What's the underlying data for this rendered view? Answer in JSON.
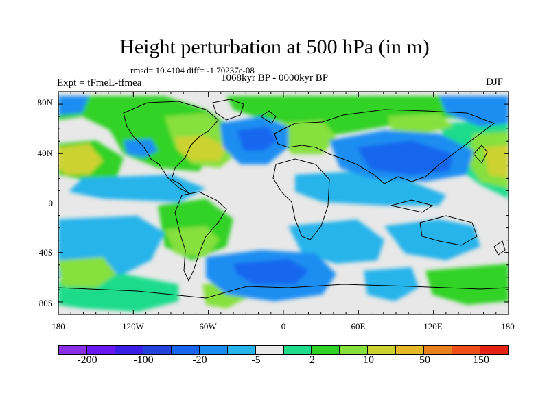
{
  "figure": {
    "title": "Height perturbation at 500 hPa (in m)",
    "stats": "rmsd= 10.4104 diff= -1.70237e-08",
    "period": "1068kyr BP - 0000kyr BP",
    "experiment": "Expt = tFmeL-tfmea",
    "season": "DJF"
  },
  "axes": {
    "lat_ticks": [
      "80N",
      "40N",
      "0",
      "40S",
      "80S"
    ],
    "lon_ticks": [
      "180",
      "120W",
      "60W",
      "0",
      "60E",
      "120E",
      "180"
    ]
  },
  "colorbar": {
    "colors": [
      "#8b2fe6",
      "#6a18f0",
      "#3b1fe6",
      "#2244dd",
      "#1966ee",
      "#1c8ef2",
      "#27b4ea",
      "#e8e8e8",
      "#1edc8c",
      "#30d228",
      "#86e03c",
      "#ccd230",
      "#e4b826",
      "#e8801c",
      "#ee4f16",
      "#e62214"
    ],
    "labels": [
      "-200",
      "-100",
      "-20",
      "-5",
      "2",
      "10",
      "50",
      "150"
    ]
  }
}
